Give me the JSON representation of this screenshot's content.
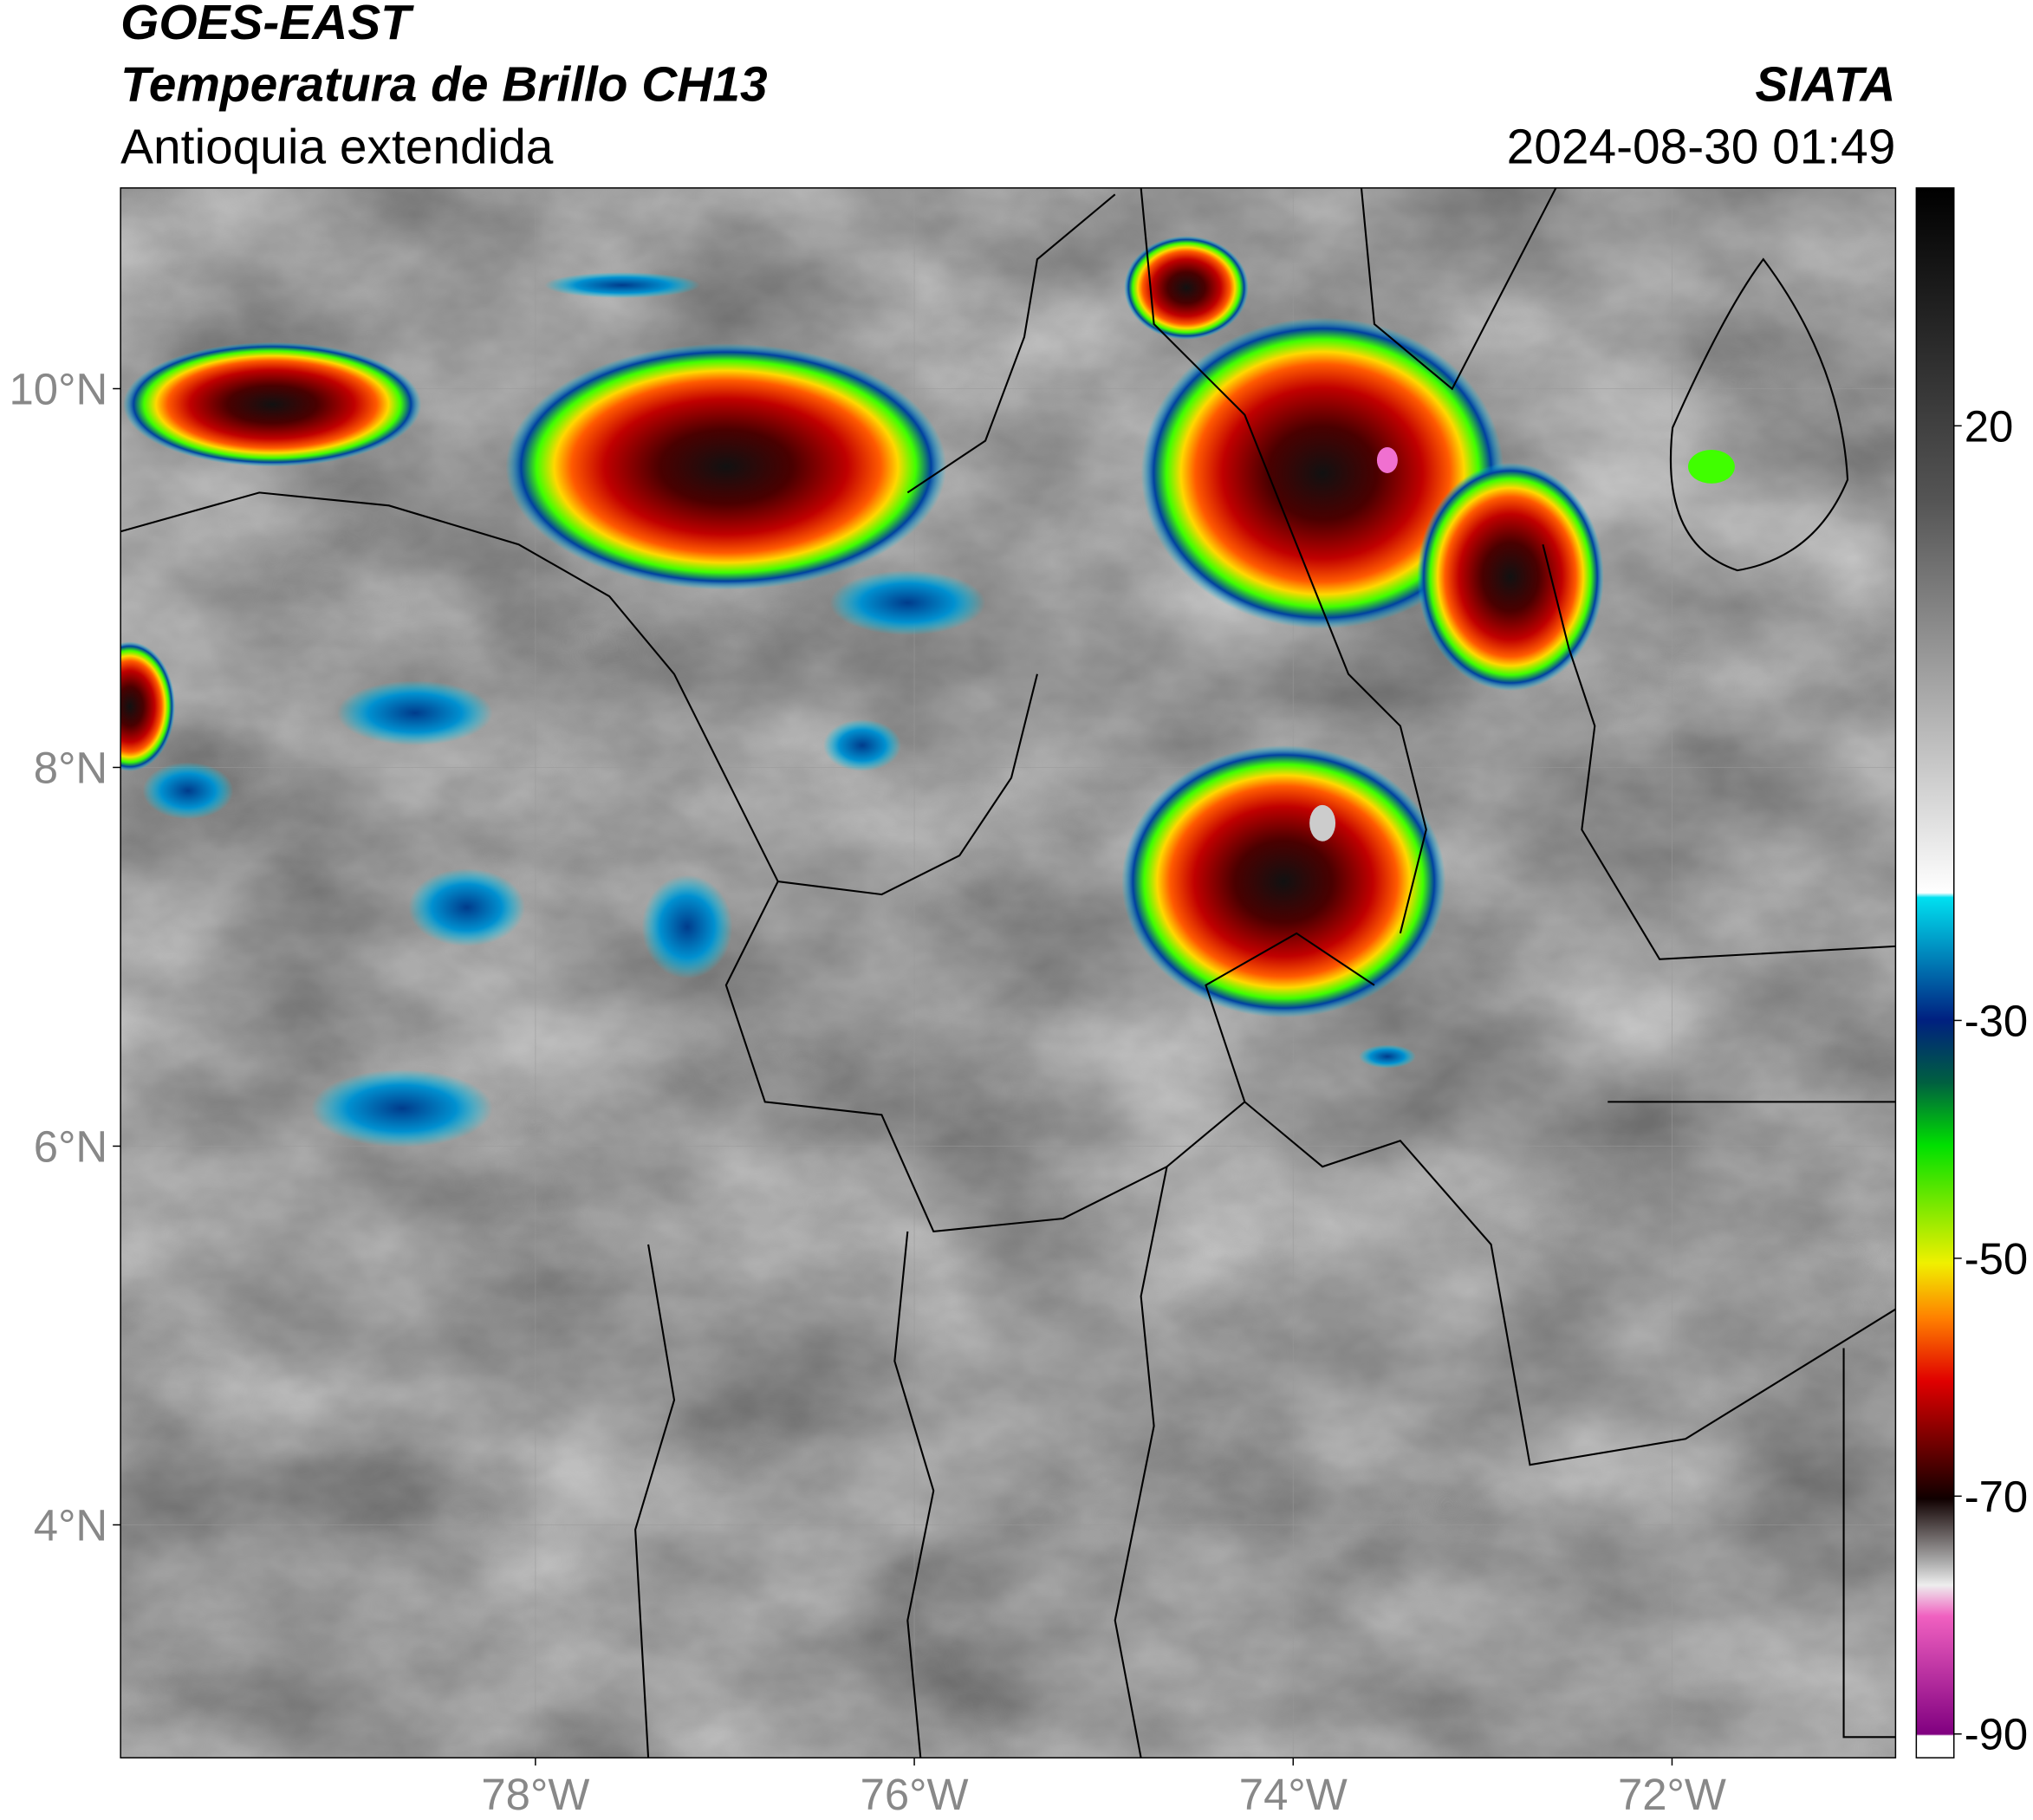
{
  "header": {
    "satellite": "GOES-EAST",
    "product": "Temperatura de Brillo CH13",
    "region": "Antioquia extendida",
    "source": "SIATA",
    "datetime": "2024-08-30 01:49"
  },
  "map": {
    "lon_lim": [
      -80.19,
      -70.82
    ],
    "lat_lim": [
      2.77,
      11.06
    ],
    "lon_ticks": [
      {
        "value": -78,
        "label": "78°W"
      },
      {
        "value": -76,
        "label": "76°W"
      },
      {
        "value": -74,
        "label": "74°W"
      },
      {
        "value": -72,
        "label": "72°W"
      }
    ],
    "lat_ticks": [
      {
        "value": 10,
        "label": "10°N"
      },
      {
        "value": 8,
        "label": "8°N"
      },
      {
        "value": 6,
        "label": "6°N"
      },
      {
        "value": 4,
        "label": "4°N"
      }
    ]
  },
  "colorbar": {
    "lim": [
      -92,
      40
    ],
    "ticks": [
      20,
      -30,
      -50,
      -70,
      -90
    ]
  }
}
